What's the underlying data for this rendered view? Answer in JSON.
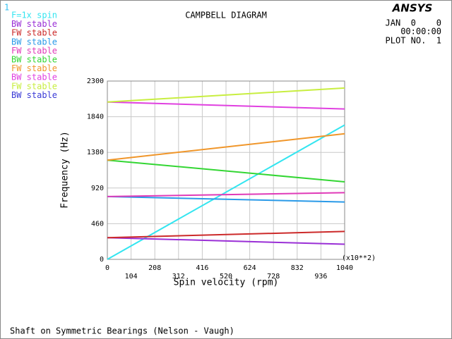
{
  "chart_data": {
    "type": "line",
    "title": "CAMPBELL DIAGRAM",
    "window_number": "1",
    "logo": "ANSYS",
    "date": "JAN  0    0",
    "time": "00:00:00",
    "plot_number": "PLOT NO.  1",
    "footer": "Shaft on Symmetric Bearings (Nelson - Vaugh)",
    "xlabel": "Spin velocity (rpm)",
    "ylabel": "Frequency (Hz)",
    "x_multiplier": "(x10**2)",
    "x": [
      0,
      1040
    ],
    "xlim": [
      0,
      1040
    ],
    "xticks": [
      0,
      104,
      208,
      312,
      416,
      520,
      624,
      728,
      832,
      936,
      1040
    ],
    "ylim": [
      0,
      2300
    ],
    "yticks": [
      0,
      460,
      920,
      1380,
      1840,
      2300
    ],
    "grid": true,
    "legend": "top-left",
    "series": [
      {
        "name": "F=1x spin",
        "color": "#33e5f0",
        "values": [
          0,
          1733
        ]
      },
      {
        "name": "BW stable",
        "color": "#9a2fd6",
        "values": [
          280,
          195
        ]
      },
      {
        "name": "FW stable",
        "color": "#cc2a2a",
        "values": [
          280,
          360
        ]
      },
      {
        "name": "BW stable",
        "color": "#2a9ae8",
        "values": [
          810,
          740
        ]
      },
      {
        "name": "FW stable",
        "color": "#e03ab8",
        "values": [
          810,
          860
        ]
      },
      {
        "name": "BW stable",
        "color": "#33d633",
        "values": [
          1280,
          1000
        ]
      },
      {
        "name": "FW stable",
        "color": "#f0962a",
        "values": [
          1280,
          1620
        ]
      },
      {
        "name": "BW stable",
        "color": "#e040e0",
        "values": [
          2030,
          1940
        ]
      },
      {
        "name": "FW stable",
        "color": "#c8ee40",
        "values": [
          2030,
          2210
        ]
      },
      {
        "name": "BW stable",
        "color": "#3a3ad6",
        "values": [
          null,
          null
        ]
      }
    ]
  }
}
